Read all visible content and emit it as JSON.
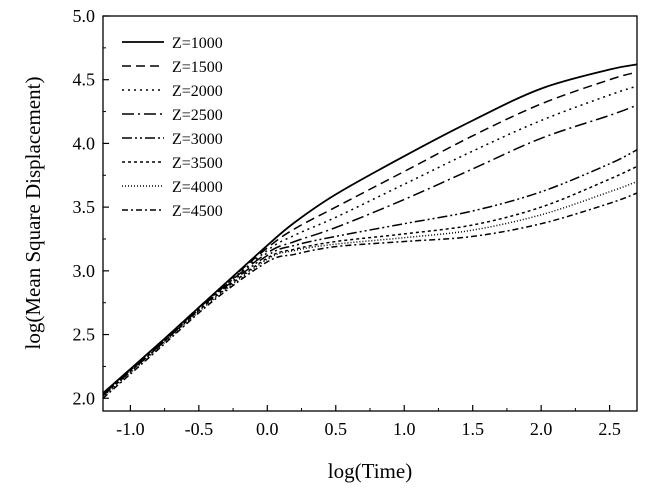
{
  "chart_data": {
    "type": "line",
    "title": "",
    "xlabel": "log(Time)",
    "ylabel": "log(Mean Square Displacement)",
    "xlim": [
      -1.2,
      2.7
    ],
    "ylim": [
      1.9,
      5.0
    ],
    "xticks": [
      -1.0,
      -0.5,
      0.0,
      0.5,
      1.0,
      1.5,
      2.0,
      2.5
    ],
    "xtick_labels": [
      "-1.0",
      "-0.5",
      "0.0",
      "0.5",
      "1.0",
      "1.5",
      "2.0",
      "2.5"
    ],
    "yticks": [
      2.0,
      2.5,
      3.0,
      3.5,
      4.0,
      4.5,
      5.0
    ],
    "ytick_labels": [
      "2.0",
      "2.5",
      "3.0",
      "3.5",
      "4.0",
      "4.5",
      "5.0"
    ],
    "grid": false,
    "legend_position": "top-left",
    "series": [
      {
        "name": "Z=1000",
        "dash": "solid",
        "x": [
          -1.2,
          -0.8,
          -0.4,
          0.0,
          0.2,
          0.5,
          1.0,
          1.5,
          2.0,
          2.5,
          2.7
        ],
        "y": [
          2.04,
          2.42,
          2.81,
          3.2,
          3.38,
          3.6,
          3.9,
          4.18,
          4.43,
          4.58,
          4.62
        ]
      },
      {
        "name": "Z=1500",
        "dash": "dash",
        "x": [
          -1.2,
          -0.8,
          -0.4,
          0.0,
          0.2,
          0.5,
          1.0,
          1.5,
          2.0,
          2.5,
          2.7
        ],
        "y": [
          2.04,
          2.42,
          2.81,
          3.18,
          3.33,
          3.5,
          3.78,
          4.06,
          4.31,
          4.5,
          4.56
        ]
      },
      {
        "name": "Z=2000",
        "dash": "dot",
        "x": [
          -1.2,
          -0.8,
          -0.4,
          0.0,
          0.2,
          0.5,
          1.0,
          1.5,
          2.0,
          2.5,
          2.7
        ],
        "y": [
          2.03,
          2.41,
          2.8,
          3.16,
          3.28,
          3.42,
          3.68,
          3.94,
          4.18,
          4.38,
          4.45
        ]
      },
      {
        "name": "Z=2500",
        "dash": "dashdot",
        "x": [
          -1.2,
          -0.8,
          -0.4,
          0.0,
          0.2,
          0.5,
          1.0,
          1.5,
          2.0,
          2.5,
          2.7
        ],
        "y": [
          2.03,
          2.41,
          2.8,
          3.14,
          3.23,
          3.34,
          3.56,
          3.8,
          4.04,
          4.22,
          4.3
        ]
      },
      {
        "name": "Z=3000",
        "dash": "dashdotdot",
        "x": [
          -1.2,
          -0.8,
          -0.4,
          0.0,
          0.2,
          0.5,
          1.0,
          1.5,
          2.0,
          2.5,
          2.7
        ],
        "y": [
          2.02,
          2.4,
          2.79,
          3.12,
          3.2,
          3.27,
          3.37,
          3.47,
          3.62,
          3.84,
          3.95
        ]
      },
      {
        "name": "Z=3500",
        "dash": "shortdot",
        "x": [
          -1.2,
          -0.8,
          -0.4,
          0.0,
          0.2,
          0.5,
          1.0,
          1.5,
          2.0,
          2.5,
          2.7
        ],
        "y": [
          2.02,
          2.4,
          2.78,
          3.1,
          3.17,
          3.23,
          3.29,
          3.36,
          3.5,
          3.72,
          3.82
        ]
      },
      {
        "name": "Z=4000",
        "dash": "finedot",
        "x": [
          -1.2,
          -0.8,
          -0.4,
          0.0,
          0.2,
          0.5,
          1.0,
          1.5,
          2.0,
          2.5,
          2.7
        ],
        "y": [
          2.01,
          2.39,
          2.77,
          3.09,
          3.16,
          3.21,
          3.26,
          3.32,
          3.44,
          3.62,
          3.7
        ]
      },
      {
        "name": "Z=4500",
        "dash": "dashshortdot",
        "x": [
          -1.2,
          -0.8,
          -0.4,
          0.0,
          0.2,
          0.5,
          1.0,
          1.5,
          2.0,
          2.5,
          2.7
        ],
        "y": [
          2.0,
          2.38,
          2.76,
          3.07,
          3.13,
          3.19,
          3.23,
          3.27,
          3.37,
          3.53,
          3.61
        ]
      }
    ]
  }
}
